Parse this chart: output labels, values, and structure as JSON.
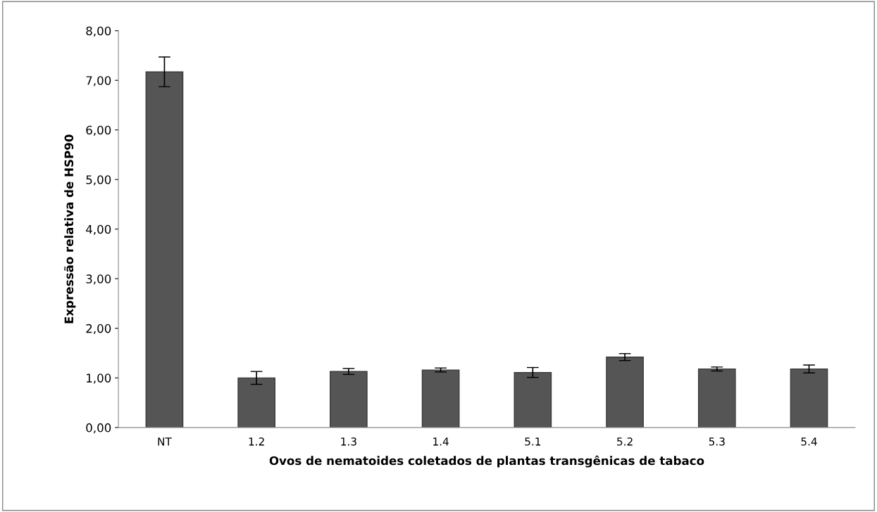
{
  "chart_data": {
    "type": "bar",
    "xlabel": "Ovos de nematoides coletados de plantas transgênicas de tabaco",
    "ylabel": "Expressão relativa de HSP90",
    "categories": [
      "NT",
      "1.2",
      "1.3",
      "1.4",
      "5.1",
      "5.2",
      "5.3",
      "5.4"
    ],
    "values": [
      7.17,
      1.0,
      1.13,
      1.16,
      1.11,
      1.42,
      1.18,
      1.18
    ],
    "errors": [
      0.3,
      0.13,
      0.06,
      0.04,
      0.1,
      0.07,
      0.04,
      0.08
    ],
    "color": "#555555",
    "ylim": [
      0,
      8
    ],
    "yticks": [
      {
        "value": 0,
        "label": "0,00"
      },
      {
        "value": 1,
        "label": "1,00"
      },
      {
        "value": 2,
        "label": "2,00"
      },
      {
        "value": 3,
        "label": "3,00"
      },
      {
        "value": 4,
        "label": "4,00"
      },
      {
        "value": 5,
        "label": "5,00"
      },
      {
        "value": 6,
        "label": "6,00"
      },
      {
        "value": 7,
        "label": "7,00"
      },
      {
        "value": 8,
        "label": "8,00"
      }
    ],
    "grid": false
  }
}
